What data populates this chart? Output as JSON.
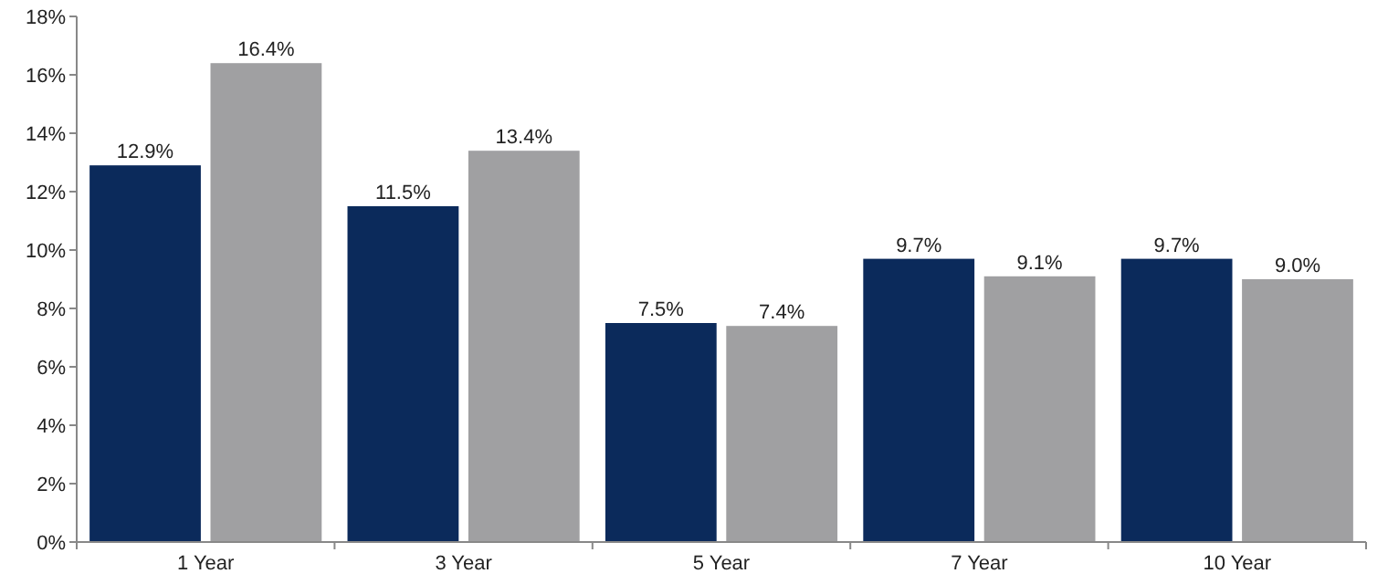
{
  "chart_data": {
    "type": "bar",
    "categories": [
      "1 Year",
      "3 Year",
      "5 Year",
      "7 Year",
      "10 Year"
    ],
    "series": [
      {
        "color": "#0b2a5b",
        "values": [
          12.9,
          11.5,
          7.5,
          9.7,
          9.7
        ],
        "value_labels": [
          "12.9%",
          "11.5%",
          "7.5%",
          "9.7%",
          "9.7%"
        ]
      },
      {
        "color": "#a0a0a2",
        "values": [
          16.4,
          13.4,
          7.4,
          9.1,
          9.0
        ],
        "value_labels": [
          "16.4%",
          "13.4%",
          "7.4%",
          "9.1%",
          "9.0%"
        ]
      }
    ],
    "ylim": [
      0,
      18
    ],
    "yticks": [
      {
        "value": 0,
        "label": "0%"
      },
      {
        "value": 2,
        "label": "2%"
      },
      {
        "value": 4,
        "label": "4%"
      },
      {
        "value": 6,
        "label": "6%"
      },
      {
        "value": 8,
        "label": "8%"
      },
      {
        "value": 10,
        "label": "10%"
      },
      {
        "value": 12,
        "label": "12%"
      },
      {
        "value": 14,
        "label": "14%"
      },
      {
        "value": 16,
        "label": "16%"
      },
      {
        "value": 18,
        "label": "18%"
      }
    ],
    "grid": false
  }
}
